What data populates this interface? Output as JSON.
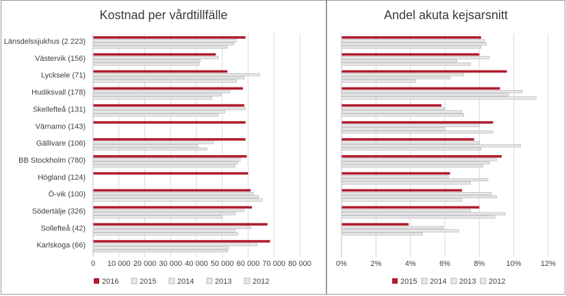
{
  "colors": {
    "s2016": "#b01c2e",
    "s2015_left": "#e6e6e6",
    "s2015_right": "#b01c2e",
    "gray_fill": "#e8e8e8",
    "gray_stroke": "#a8a8a8",
    "grid": "#d9d9d9",
    "text": "#404040"
  },
  "chart_data": [
    {
      "type": "bar",
      "orientation": "horizontal",
      "title": "Kostnad per vårdtillfälle",
      "categories": [
        "Länsdelssjukhus (2 223)",
        "Västervik (156)",
        "Lycksele (71)",
        "Hudiksvall (178)",
        "Skellefteå (131)",
        "Värnamo (143)",
        "Gällivare (106)",
        "BB Stockholm (780)",
        "Högland (124)",
        "Ö-vik (100)",
        "Södertälje (326)",
        "Sollefteå (42)",
        "Karlskoga (66)"
      ],
      "xlim": [
        0,
        80000
      ],
      "xticks": [
        "0",
        "10 000",
        "20 000",
        "30 000",
        "40 000",
        "50 000",
        "60 000",
        "70 000",
        "80 000"
      ],
      "grid": true,
      "legend_position": "bottom",
      "series": [
        {
          "name": "2016",
          "values": [
            59000,
            47500,
            52000,
            58000,
            58500,
            59000,
            59000,
            59500,
            60000,
            61000,
            61500,
            67500,
            68500
          ]
        },
        {
          "name": "2015",
          "values": [
            55500,
            48500,
            64500,
            53000,
            59000,
            null,
            46500,
            57000,
            null,
            62000,
            58500,
            61000,
            63500
          ]
        },
        {
          "name": "2014",
          "values": [
            54500,
            41500,
            58500,
            49500,
            51000,
            null,
            40500,
            56000,
            null,
            64000,
            55000,
            55000,
            52500
          ]
        },
        {
          "name": "2013",
          "values": [
            52000,
            41000,
            55500,
            46000,
            48500,
            null,
            44000,
            55000,
            null,
            65500,
            50000,
            56000,
            52000
          ]
        },
        {
          "name": "2012",
          "values": [
            null,
            null,
            null,
            null,
            null,
            null,
            null,
            null,
            null,
            null,
            null,
            null,
            null
          ]
        }
      ]
    },
    {
      "type": "bar",
      "orientation": "horizontal",
      "title": "Andel akuta kejsarsnitt",
      "categories": [
        "Länsdelssjukhus (2 223)",
        "Västervik (156)",
        "Lycksele (71)",
        "Hudiksvall (178)",
        "Skellefteå (131)",
        "Värnamo (143)",
        "Gällivare (106)",
        "BB Stockholm (780)",
        "Högland (124)",
        "Ö-vik (100)",
        "Södertälje (326)",
        "Sollefteå (42)",
        "Karlskoga (66)"
      ],
      "xlim": [
        0,
        12
      ],
      "xticks": [
        "0%",
        "2%",
        "4%",
        "6%",
        "8%",
        "10%",
        "12%"
      ],
      "grid": true,
      "legend_position": "bottom",
      "series": [
        {
          "name": "2015",
          "values": [
            8.1,
            8.0,
            9.6,
            9.2,
            5.8,
            8.8,
            7.7,
            9.3,
            6.3,
            7.0,
            8.0,
            3.9,
            null
          ]
        },
        {
          "name": "2014",
          "values": [
            8.3,
            8.6,
            7.1,
            10.5,
            6.0,
            8.0,
            8.0,
            9.0,
            6.2,
            8.7,
            7.5,
            5.9,
            null
          ]
        },
        {
          "name": "2013",
          "values": [
            8.4,
            6.7,
            6.3,
            9.7,
            7.0,
            6.0,
            10.4,
            8.6,
            8.5,
            9.0,
            9.5,
            6.8,
            null
          ]
        },
        {
          "name": "2012",
          "values": [
            8.1,
            7.5,
            4.3,
            11.3,
            7.1,
            8.8,
            8.1,
            8.2,
            7.5,
            7.0,
            8.9,
            4.7,
            null
          ]
        }
      ]
    }
  ]
}
